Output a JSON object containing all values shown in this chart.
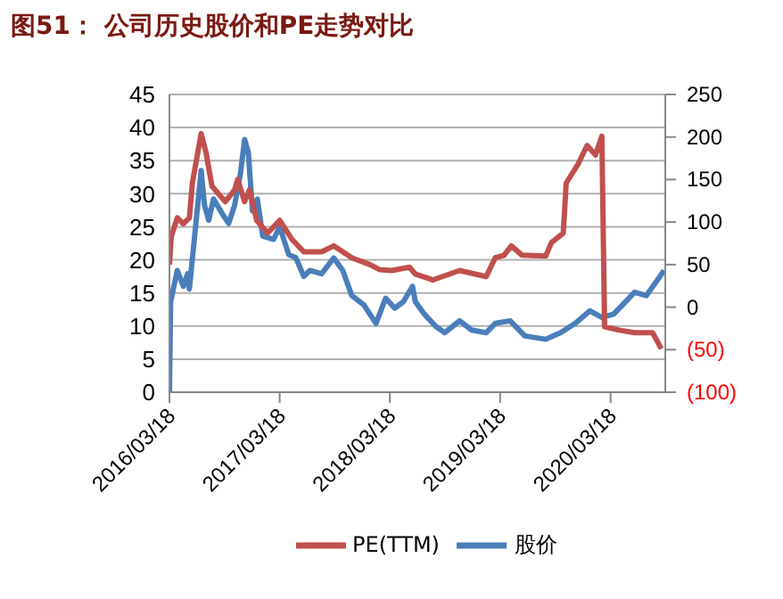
{
  "chart_data": {
    "type": "line",
    "title": "图51： 公司历史股价和PE走势对比",
    "series": [
      {
        "name": "股价",
        "color": "#4a7ebb",
        "x": [
          "2016-03-18",
          "2016-03-22",
          "2016-04-13",
          "2016-05-03",
          "2016-05-17",
          "2016-05-23",
          "2016-07-01",
          "2016-07-12",
          "2016-07-26",
          "2016-08-11",
          "2016-09-10",
          "2016-09-30",
          "2016-10-20",
          "2016-11-08",
          "2016-11-22",
          "2016-12-04",
          "2016-12-18",
          "2017-01-03",
          "2017-01-21",
          "2017-02-26",
          "2017-03-18",
          "2017-04-17",
          "2017-05-11",
          "2017-06-06",
          "2017-06-26",
          "2017-08-04",
          "2017-09-13",
          "2017-10-13",
          "2017-11-12",
          "2017-12-22",
          "2018-01-31",
          "2018-03-04",
          "2018-04-03",
          "2018-05-02",
          "2018-06-01",
          "2018-06-10",
          "2018-07-10",
          "2018-08-18",
          "2018-09-16",
          "2018-11-04",
          "2018-12-13",
          "2019-01-31",
          "2019-03-02",
          "2019-04-20",
          "2019-06-08",
          "2019-08-16",
          "2019-10-04",
          "2019-11-22",
          "2020-01-09",
          "2020-02-18",
          "2020-03-28",
          "2020-05-07",
          "2020-06-05",
          "2020-07-14",
          "2020-08-13",
          "2020-09-11"
        ],
        "values": [
          0,
          13.7,
          18.4,
          16,
          17.9,
          15.6,
          33.5,
          28.3,
          26,
          29.2,
          26.9,
          25.5,
          28.3,
          33,
          38.2,
          36.3,
          27.4,
          29.2,
          23.6,
          23.1,
          25,
          20.8,
          20.3,
          17.5,
          18.4,
          17.9,
          20.3,
          18.4,
          14.6,
          13.2,
          10.4,
          14.2,
          12.7,
          13.7,
          16,
          13.7,
          11.8,
          9.9,
          9,
          10.8,
          9.4,
          9,
          10.4,
          10.8,
          8.5,
          8,
          9,
          10.4,
          12.3,
          11.3,
          11.8,
          13.7,
          15.1,
          14.6,
          16.5,
          18.4
        ]
      },
      {
        "name": "PE(TTM)",
        "color": "#c0504d",
        "axis": "y2",
        "x": [
          "2016-03-18",
          "2016-03-24",
          "2016-04-13",
          "2016-05-03",
          "2016-05-23",
          "2016-06-02",
          "2016-07-01",
          "2016-07-17",
          "2016-08-06",
          "2016-09-19",
          "2016-10-20",
          "2016-10-30",
          "2016-11-22",
          "2016-12-08",
          "2017-01-01",
          "2017-02-06",
          "2017-03-18",
          "2017-04-27",
          "2017-06-06",
          "2017-08-04",
          "2017-09-13",
          "2017-11-12",
          "2018-01-11",
          "2018-02-13",
          "2018-03-24",
          "2018-05-22",
          "2018-06-10",
          "2018-08-08",
          "2018-11-04",
          "2019-01-31",
          "2019-03-02",
          "2019-03-31",
          "2019-04-24",
          "2019-05-30",
          "2019-08-16",
          "2019-09-04",
          "2019-10-13",
          "2019-10-23",
          "2019-12-01",
          "2019-12-31",
          "2020-01-28",
          "2020-02-18",
          "2020-02-27",
          "2020-04-16",
          "2020-06-05",
          "2020-08-04",
          "2020-09-02"
        ],
        "values": [
          50,
          83,
          105,
          98,
          105,
          146,
          204,
          182,
          142,
          124,
          138,
          150,
          124,
          138,
          102,
          87,
          102,
          80,
          65,
          65,
          72,
          58,
          50,
          44,
          43,
          47,
          39,
          32,
          43,
          36,
          58,
          61,
          72,
          61,
          60,
          76,
          87,
          146,
          168,
          190,
          179,
          201,
          -23,
          -27,
          -30,
          -30,
          -49
        ]
      }
    ],
    "xlim": [
      "2016-03-18",
      "2020-09-15"
    ],
    "xticks": [
      {
        "value": "2016-03-18",
        "label": "2016/03/18"
      },
      {
        "value": "2017-03-18",
        "label": "2017/03/18"
      },
      {
        "value": "2018-03-18",
        "label": "2018/03/18"
      },
      {
        "value": "2019-03-18",
        "label": "2019/03/18"
      },
      {
        "value": "2020-03-18",
        "label": "2020/03/18"
      }
    ],
    "ylim": [
      0,
      45
    ],
    "yticks": [
      0,
      5,
      10,
      15,
      20,
      25,
      30,
      35,
      40,
      45
    ],
    "y2lim": [
      -100,
      250
    ],
    "y2ticks": [
      {
        "value": -100,
        "label": "(100)"
      },
      {
        "value": -50,
        "label": "(50)"
      },
      0,
      50,
      100,
      150,
      200,
      250
    ],
    "grid": "y",
    "legend": "bottom",
    "line_style": "solid",
    "marker": "none"
  }
}
